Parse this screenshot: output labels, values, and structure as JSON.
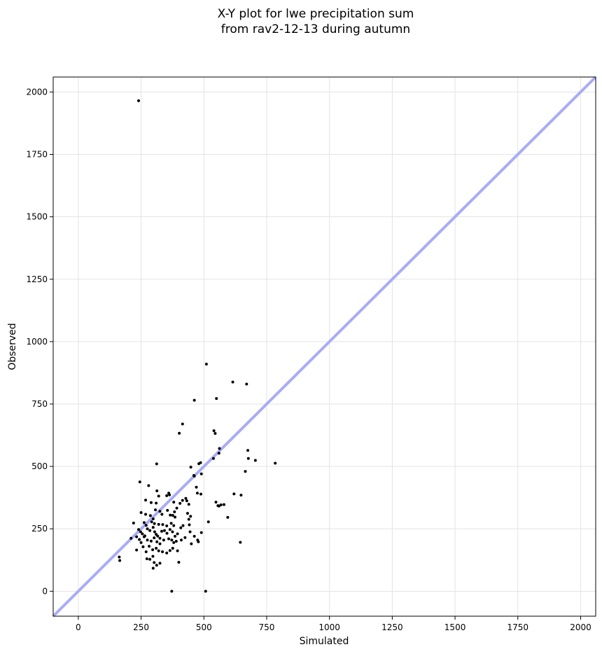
{
  "chart_data": {
    "type": "scatter",
    "title_lines": [
      "X-Y plot for lwe precipitation sum",
      "from rav2-12-13 during autumn"
    ],
    "xlabel": "Simulated",
    "ylabel": "Observed",
    "xlim": [
      -100,
      2060
    ],
    "ylim": [
      -100,
      2060
    ],
    "x_ticks": [
      0,
      250,
      500,
      750,
      1000,
      1250,
      1500,
      1750,
      2000
    ],
    "y_ticks": [
      0,
      250,
      500,
      750,
      1000,
      1250,
      1500,
      1750,
      2000
    ],
    "x_tick_labels": [
      "0",
      "250",
      "500",
      "750",
      "1000",
      "1250",
      "1500",
      "1750",
      "2000"
    ],
    "y_tick_labels": [
      "0",
      "250",
      "500",
      "750",
      "1000",
      "1250",
      "1500",
      "1750",
      "2000"
    ],
    "grid": true,
    "marker_color": "#000000",
    "reference_line": {
      "from": [
        -100,
        -100
      ],
      "to": [
        2060,
        2060
      ],
      "color": "#a9acf5"
    },
    "points": [
      [
        240,
        1965
      ],
      [
        510,
        910
      ],
      [
        615,
        838
      ],
      [
        670,
        830
      ],
      [
        462,
        765
      ],
      [
        550,
        772
      ],
      [
        415,
        670
      ],
      [
        402,
        633
      ],
      [
        540,
        643
      ],
      [
        545,
        632
      ],
      [
        562,
        572
      ],
      [
        560,
        553
      ],
      [
        538,
        532
      ],
      [
        675,
        564
      ],
      [
        677,
        532
      ],
      [
        705,
        524
      ],
      [
        784,
        513
      ],
      [
        665,
        480
      ],
      [
        312,
        510
      ],
      [
        448,
        497
      ],
      [
        480,
        511
      ],
      [
        487,
        515
      ],
      [
        460,
        464
      ],
      [
        462,
        461
      ],
      [
        490,
        470
      ],
      [
        245,
        438
      ],
      [
        280,
        423
      ],
      [
        470,
        417
      ],
      [
        474,
        393
      ],
      [
        488,
        389
      ],
      [
        313,
        402
      ],
      [
        320,
        381
      ],
      [
        352,
        383
      ],
      [
        360,
        393
      ],
      [
        363,
        386
      ],
      [
        620,
        390
      ],
      [
        648,
        385
      ],
      [
        548,
        357
      ],
      [
        556,
        343
      ],
      [
        560,
        341
      ],
      [
        568,
        346
      ],
      [
        580,
        347
      ],
      [
        268,
        365
      ],
      [
        290,
        355
      ],
      [
        310,
        353
      ],
      [
        380,
        357
      ],
      [
        405,
        352
      ],
      [
        415,
        364
      ],
      [
        428,
        372
      ],
      [
        432,
        362
      ],
      [
        440,
        348
      ],
      [
        435,
        312
      ],
      [
        447,
        300
      ],
      [
        440,
        288
      ],
      [
        392,
        333
      ],
      [
        383,
        318
      ],
      [
        355,
        324
      ],
      [
        366,
        305
      ],
      [
        376,
        304
      ],
      [
        385,
        297
      ],
      [
        307,
        326
      ],
      [
        325,
        320
      ],
      [
        333,
        308
      ],
      [
        250,
        315
      ],
      [
        268,
        308
      ],
      [
        287,
        303
      ],
      [
        298,
        290
      ],
      [
        220,
        273
      ],
      [
        262,
        275
      ],
      [
        270,
        264
      ],
      [
        292,
        278
      ],
      [
        303,
        271
      ],
      [
        320,
        268
      ],
      [
        336,
        267
      ],
      [
        352,
        262
      ],
      [
        370,
        272
      ],
      [
        380,
        263
      ],
      [
        408,
        254
      ],
      [
        417,
        263
      ],
      [
        442,
        266
      ],
      [
        595,
        296
      ],
      [
        518,
        278
      ],
      [
        240,
        247
      ],
      [
        248,
        238
      ],
      [
        255,
        230
      ],
      [
        265,
        222
      ],
      [
        275,
        250
      ],
      [
        285,
        243
      ],
      [
        298,
        256
      ],
      [
        304,
        238
      ],
      [
        310,
        228
      ],
      [
        316,
        221
      ],
      [
        325,
        212
      ],
      [
        332,
        240
      ],
      [
        343,
        243
      ],
      [
        353,
        232
      ],
      [
        365,
        247
      ],
      [
        375,
        238
      ],
      [
        385,
        220
      ],
      [
        395,
        230
      ],
      [
        445,
        238
      ],
      [
        462,
        220
      ],
      [
        490,
        235
      ],
      [
        210,
        212
      ],
      [
        232,
        218
      ],
      [
        243,
        207
      ],
      [
        250,
        195
      ],
      [
        262,
        218
      ],
      [
        275,
        205
      ],
      [
        290,
        201
      ],
      [
        302,
        214
      ],
      [
        313,
        198
      ],
      [
        325,
        190
      ],
      [
        340,
        205
      ],
      [
        360,
        210
      ],
      [
        372,
        205
      ],
      [
        380,
        195
      ],
      [
        390,
        200
      ],
      [
        410,
        205
      ],
      [
        425,
        215
      ],
      [
        450,
        190
      ],
      [
        475,
        205
      ],
      [
        478,
        198
      ],
      [
        645,
        196
      ],
      [
        232,
        165
      ],
      [
        258,
        178
      ],
      [
        270,
        158
      ],
      [
        282,
        180
      ],
      [
        296,
        166
      ],
      [
        310,
        172
      ],
      [
        320,
        162
      ],
      [
        335,
        158
      ],
      [
        352,
        153
      ],
      [
        365,
        163
      ],
      [
        376,
        172
      ],
      [
        395,
        162
      ],
      [
        273,
        130
      ],
      [
        285,
        128
      ],
      [
        297,
        140
      ],
      [
        302,
        115
      ],
      [
        312,
        104
      ],
      [
        325,
        112
      ],
      [
        400,
        116
      ],
      [
        298,
        92
      ],
      [
        163,
        137
      ],
      [
        165,
        123
      ],
      [
        372,
        0
      ],
      [
        507,
        0
      ]
    ]
  }
}
